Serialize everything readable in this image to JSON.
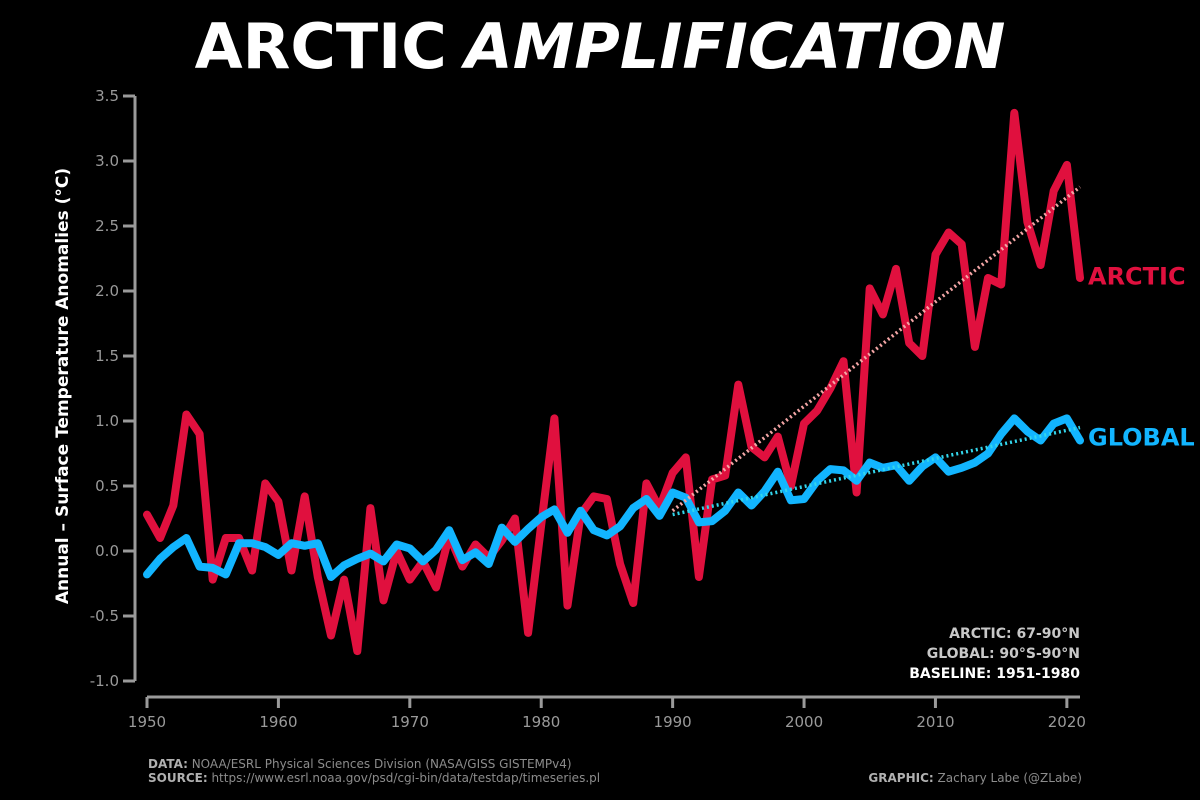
{
  "chart_data": {
    "type": "line",
    "title_part1": "ARCTIC",
    "title_part2": "AMPLIFICATION",
    "ylabel": "Annual – Surface Temperature Anomalies (°C)",
    "xlabel": "",
    "xlim": [
      1950,
      2021
    ],
    "ylim": [
      -1.0,
      3.5
    ],
    "xticks": [
      "1950",
      "1960",
      "1970",
      "1980",
      "1990",
      "2000",
      "2010",
      "2020"
    ],
    "yticks": [
      "-1.0",
      "-0.5",
      "0.0",
      "0.5",
      "1.0",
      "1.5",
      "2.0",
      "2.5",
      "3.0",
      "3.5"
    ],
    "x": [
      1950,
      1951,
      1952,
      1953,
      1954,
      1955,
      1956,
      1957,
      1958,
      1959,
      1960,
      1961,
      1962,
      1963,
      1964,
      1965,
      1966,
      1967,
      1968,
      1969,
      1970,
      1971,
      1972,
      1973,
      1974,
      1975,
      1976,
      1977,
      1978,
      1979,
      1980,
      1981,
      1982,
      1983,
      1984,
      1985,
      1986,
      1987,
      1988,
      1989,
      1990,
      1991,
      1992,
      1993,
      1994,
      1995,
      1996,
      1997,
      1998,
      1999,
      2000,
      2001,
      2002,
      2003,
      2004,
      2005,
      2006,
      2007,
      2008,
      2009,
      2010,
      2011,
      2012,
      2013,
      2014,
      2015,
      2016,
      2017,
      2018,
      2019,
      2020,
      2021
    ],
    "series": [
      {
        "name": "ARCTIC",
        "color": "#e0103e",
        "values": [
          0.28,
          0.1,
          0.35,
          1.05,
          0.9,
          -0.22,
          0.1,
          0.1,
          -0.15,
          0.52,
          0.38,
          -0.15,
          0.42,
          -0.2,
          -0.65,
          -0.22,
          -0.77,
          0.33,
          -0.38,
          0.0,
          -0.22,
          -0.08,
          -0.28,
          0.12,
          -0.12,
          0.05,
          -0.05,
          0.08,
          0.25,
          -0.63,
          0.2,
          1.02,
          -0.42,
          0.28,
          0.42,
          0.4,
          -0.1,
          -0.4,
          0.52,
          0.33,
          0.6,
          0.72,
          -0.2,
          0.55,
          0.58,
          1.28,
          0.8,
          0.72,
          0.88,
          0.5,
          0.98,
          1.08,
          1.25,
          1.46,
          0.45,
          2.02,
          1.82,
          2.17,
          1.6,
          1.5,
          2.28,
          2.45,
          2.36,
          1.57,
          2.1,
          2.05,
          3.37,
          2.53,
          2.2,
          2.77,
          2.97,
          2.1
        ]
      },
      {
        "name": "GLOBAL",
        "color": "#12b5ff",
        "values": [
          -0.18,
          -0.06,
          0.03,
          0.1,
          -0.12,
          -0.13,
          -0.18,
          0.06,
          0.06,
          0.03,
          -0.03,
          0.06,
          0.04,
          0.06,
          -0.2,
          -0.11,
          -0.06,
          -0.02,
          -0.08,
          0.05,
          0.02,
          -0.08,
          0.01,
          0.16,
          -0.07,
          -0.01,
          -0.1,
          0.18,
          0.07,
          0.17,
          0.26,
          0.32,
          0.14,
          0.31,
          0.16,
          0.12,
          0.19,
          0.33,
          0.4,
          0.27,
          0.45,
          0.41,
          0.22,
          0.23,
          0.31,
          0.45,
          0.35,
          0.46,
          0.61,
          0.39,
          0.4,
          0.54,
          0.63,
          0.62,
          0.54,
          0.68,
          0.64,
          0.66,
          0.54,
          0.65,
          0.72,
          0.61,
          0.64,
          0.68,
          0.75,
          0.9,
          1.02,
          0.92,
          0.85,
          0.98,
          1.02,
          0.85
        ]
      }
    ],
    "trends": [
      {
        "series": "ARCTIC",
        "color": "#f4a6a6",
        "x": [
          1990,
          2021
        ],
        "y": [
          0.31,
          2.8
        ]
      },
      {
        "series": "GLOBAL",
        "color": "#33d6ec",
        "x": [
          1990,
          2021
        ],
        "y": [
          0.28,
          0.95
        ]
      }
    ],
    "annotations": [
      "ARCTIC: 67-90°N",
      "GLOBAL: 90°S-90°N",
      "BASELINE: 1951-1980"
    ]
  },
  "footer": {
    "data_label": "DATA:",
    "data_text": " NOAA/ESRL Physical Sciences Division (NASA/GISS GISTEMPv4)",
    "source_label": "SOURCE:",
    "source_text": " https://www.esrl.noaa.gov/psd/cgi-bin/data/testdap/timeseries.pl",
    "graphic_label": "GRAPHIC:",
    "graphic_text": " Zachary Labe (@ZLabe)"
  },
  "colors": {
    "background": "#000000",
    "axis": "#9a9a9a",
    "arctic": "#e0103e",
    "global": "#12b5ff"
  }
}
